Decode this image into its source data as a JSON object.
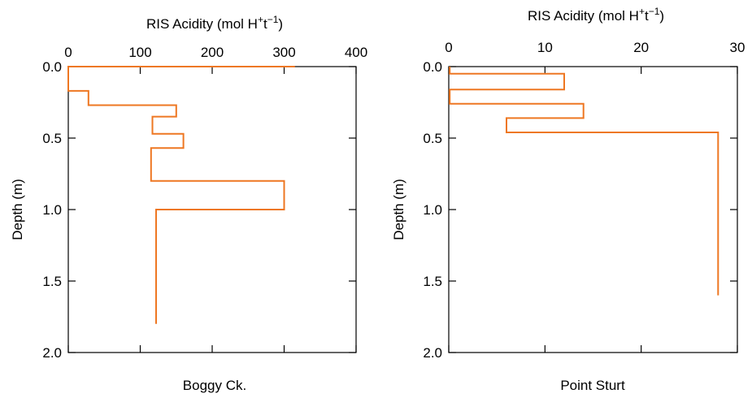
{
  "chart_data": [
    {
      "type": "line",
      "panel": "left",
      "site_label": "Boggy Ck.",
      "top_xlabel": {
        "main": "RIS Acidity (mol H",
        "sup1": "+",
        "mid": "t",
        "sup2": "−1",
        "close": ")"
      },
      "ylabel": "Depth (m)",
      "xlim": [
        0,
        400
      ],
      "ylim": [
        0,
        2.0
      ],
      "y_inverted": true,
      "x_ticks": [
        0,
        100,
        200,
        300,
        400
      ],
      "x_tick_labels": [
        "0",
        "100",
        "200",
        "300",
        "400"
      ],
      "y_ticks": [
        0.0,
        0.5,
        1.0,
        1.5,
        2.0
      ],
      "y_tick_labels": [
        "0.0",
        "0.5",
        "1.0",
        "1.5",
        "2.0"
      ],
      "color": "#ee7722",
      "series": [
        {
          "profile": [
            {
              "x": 315,
              "y": 0.0
            },
            {
              "x": 0,
              "y": 0.0
            },
            {
              "x": 0,
              "y": 0.17
            },
            {
              "x": 28,
              "y": 0.17
            },
            {
              "x": 28,
              "y": 0.27
            },
            {
              "x": 150,
              "y": 0.27
            },
            {
              "x": 150,
              "y": 0.35
            },
            {
              "x": 117,
              "y": 0.35
            },
            {
              "x": 117,
              "y": 0.47
            },
            {
              "x": 160,
              "y": 0.47
            },
            {
              "x": 160,
              "y": 0.57
            },
            {
              "x": 115,
              "y": 0.57
            },
            {
              "x": 115,
              "y": 0.8
            },
            {
              "x": 300,
              "y": 0.8
            },
            {
              "x": 300,
              "y": 1.0
            },
            {
              "x": 122,
              "y": 1.0
            },
            {
              "x": 122,
              "y": 1.8
            }
          ]
        }
      ]
    },
    {
      "type": "line",
      "panel": "right",
      "site_label": "Point Sturt",
      "top_xlabel": {
        "main": "RIS Acidity (mol H",
        "sup1": "+",
        "mid": "t",
        "sup2": "−1",
        "close": ")"
      },
      "ylabel": "Depth (m)",
      "xlim": [
        0,
        30
      ],
      "ylim": [
        0,
        2.0
      ],
      "y_inverted": true,
      "x_ticks": [
        0,
        10,
        20,
        30
      ],
      "x_tick_labels": [
        "0",
        "10",
        "20",
        "30"
      ],
      "y_ticks": [
        0.0,
        0.5,
        1.0,
        1.5,
        2.0
      ],
      "y_tick_labels": [
        "0.0",
        "0.5",
        "1.0",
        "1.5",
        "2.0"
      ],
      "color": "#ee7722",
      "series": [
        {
          "profile": [
            {
              "x": 0.1,
              "y": 0.0
            },
            {
              "x": 0.1,
              "y": 0.05
            },
            {
              "x": 12,
              "y": 0.05
            },
            {
              "x": 12,
              "y": 0.16
            },
            {
              "x": 0.1,
              "y": 0.16
            },
            {
              "x": 0.1,
              "y": 0.26
            },
            {
              "x": 14,
              "y": 0.26
            },
            {
              "x": 14,
              "y": 0.36
            },
            {
              "x": 6,
              "y": 0.36
            },
            {
              "x": 6,
              "y": 0.46
            },
            {
              "x": 28,
              "y": 0.46
            },
            {
              "x": 28,
              "y": 1.6
            }
          ]
        }
      ]
    }
  ]
}
